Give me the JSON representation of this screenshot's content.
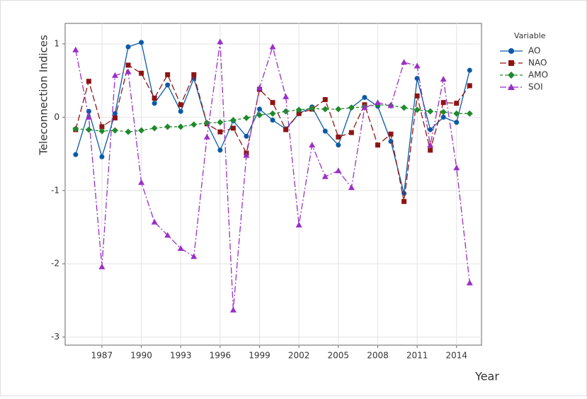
{
  "chart_data": {
    "type": "line",
    "x_label": "Year",
    "y_label": "Teleconnection Indices",
    "legend_title": "Variable",
    "x": [
      1985,
      1986,
      1987,
      1988,
      1989,
      1990,
      1991,
      1992,
      1993,
      1994,
      1995,
      1996,
      1997,
      1998,
      1999,
      2000,
      2001,
      2002,
      2003,
      2004,
      2005,
      2006,
      2007,
      2008,
      2009,
      2010,
      2011,
      2012,
      2013,
      2014,
      2015
    ],
    "xlim": [
      1984.2,
      2015.9
    ],
    "xticks": [
      1987,
      1990,
      1993,
      1996,
      1999,
      2002,
      2005,
      2008,
      2011,
      2014
    ],
    "ylim": [
      -3.11,
      1.28
    ],
    "yticks": [
      -3,
      -2,
      -1,
      0,
      1
    ],
    "grid": true,
    "legend": "right",
    "series": [
      {
        "name": "AO",
        "color": "#0b5aa8",
        "marker": "circle",
        "line_style": "solid",
        "values": [
          -0.51,
          0.08,
          -0.54,
          0.05,
          0.96,
          1.02,
          0.19,
          0.44,
          0.08,
          0.53,
          -0.09,
          -0.45,
          -0.05,
          -0.26,
          0.11,
          -0.04,
          -0.16,
          0.05,
          0.14,
          -0.19,
          -0.38,
          0.13,
          0.27,
          0.15,
          -0.33,
          -1.04,
          0.53,
          -0.17,
          0.0,
          -0.07,
          0.64
        ]
      },
      {
        "name": "NAO",
        "color": "#8e1414",
        "marker": "square",
        "line_style": "dashed",
        "values": [
          -0.17,
          0.49,
          -0.13,
          -0.01,
          0.71,
          0.6,
          0.26,
          0.58,
          0.17,
          0.58,
          -0.09,
          -0.2,
          -0.15,
          -0.49,
          0.38,
          0.2,
          -0.17,
          0.05,
          0.11,
          0.24,
          -0.27,
          -0.21,
          0.17,
          -0.38,
          -0.23,
          -1.15,
          0.29,
          -0.45,
          0.2,
          0.19,
          0.43
        ]
      },
      {
        "name": "AMO",
        "color": "#1f8a2c",
        "marker": "diamond",
        "line_style": "dotted",
        "values": [
          -0.16,
          -0.17,
          -0.19,
          -0.18,
          -0.2,
          -0.18,
          -0.15,
          -0.13,
          -0.13,
          -0.1,
          -0.08,
          -0.07,
          -0.04,
          -0.01,
          0.03,
          0.05,
          0.08,
          0.1,
          0.12,
          0.11,
          0.11,
          0.13,
          0.14,
          0.17,
          0.16,
          0.13,
          0.1,
          0.08,
          0.07,
          0.05,
          0.05
        ]
      },
      {
        "name": "SOI",
        "color": "#9a2fc6",
        "marker": "triangle",
        "line_style": "dashdot",
        "values": [
          0.92,
          0.0,
          -2.04,
          0.57,
          0.62,
          -0.89,
          -1.43,
          -1.61,
          -1.79,
          -1.9,
          -0.27,
          1.03,
          -2.63,
          -0.52,
          0.4,
          0.96,
          0.28,
          -1.47,
          -0.38,
          -0.81,
          -0.73,
          -0.96,
          0.13,
          0.2,
          0.16,
          0.75,
          0.7,
          -0.38,
          0.52,
          -0.69,
          -2.26
        ]
      }
    ]
  }
}
